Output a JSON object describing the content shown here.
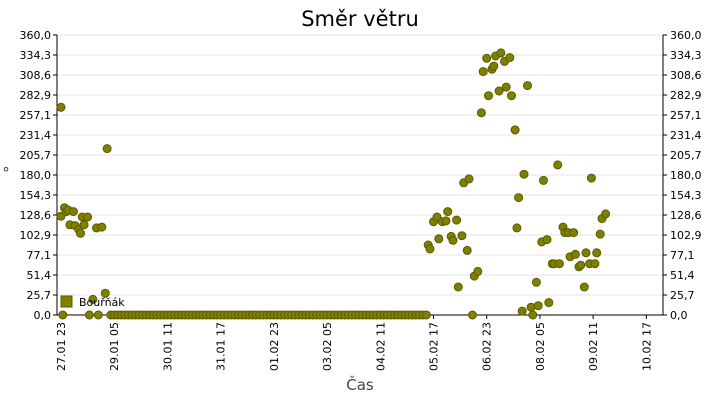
{
  "chart_data": {
    "type": "scatter",
    "title": "Směr větru",
    "xlabel": "Čas",
    "ylabel": "°",
    "ylim": [
      0,
      360
    ],
    "y_ticks": [
      "0,0",
      "25,7",
      "51,4",
      "77,1",
      "102,9",
      "128,6",
      "154,3",
      "180,0",
      "205,7",
      "231,4",
      "257,1",
      "282,9",
      "308,6",
      "334,3",
      "360,0"
    ],
    "x_range": [
      "27.01 23",
      "10.02 23"
    ],
    "x_ticks": [
      "27.01 23",
      "29.01 05",
      "30.01 11",
      "31.01 17",
      "01.02 23",
      "03.02 05",
      "04.02 11",
      "05.02 17",
      "06.02 23",
      "08.02 05",
      "09.02 11",
      "10.02 17"
    ],
    "grid": true,
    "legend_position": "bottom-left",
    "colors": {
      "marker": "#808000",
      "marker_edge": "#5a5a00",
      "grid": "#e6e6e6"
    },
    "series": [
      {
        "name": "Bouřňák",
        "points": [
          [
            "27.01 23",
            127
          ],
          [
            "27.01 23",
            267
          ],
          [
            "28.01 00",
            0
          ],
          [
            "28.01 01",
            138
          ],
          [
            "28.01 02",
            133
          ],
          [
            "28.01 03",
            135
          ],
          [
            "28.01 04",
            116
          ],
          [
            "28.01 06",
            133
          ],
          [
            "28.01 07",
            115
          ],
          [
            "28.01 09",
            110
          ],
          [
            "28.01 10",
            105
          ],
          [
            "28.01 11",
            126
          ],
          [
            "28.01 12",
            116
          ],
          [
            "28.01 14",
            126
          ],
          [
            "28.01 15",
            0
          ],
          [
            "28.01 17",
            20
          ],
          [
            "28.01 19",
            112
          ],
          [
            "28.01 20",
            0
          ],
          [
            "28.01 22",
            113
          ],
          [
            "29.01 00",
            28
          ],
          [
            "29.01 01",
            214
          ],
          [
            "29.01 03",
            0
          ],
          [
            "29.01 05",
            0
          ],
          [
            "29.01 07",
            0
          ],
          [
            "29.01 09",
            0
          ],
          [
            "29.01 11",
            0
          ],
          [
            "29.01 13",
            0
          ],
          [
            "29.01 15",
            0
          ],
          [
            "29.01 17",
            0
          ],
          [
            "29.01 19",
            0
          ],
          [
            "29.01 21",
            0
          ],
          [
            "29.01 23",
            0
          ],
          [
            "30.01 01",
            0
          ],
          [
            "30.01 03",
            0
          ],
          [
            "30.01 05",
            0
          ],
          [
            "30.01 07",
            0
          ],
          [
            "30.01 09",
            0
          ],
          [
            "30.01 11",
            0
          ],
          [
            "30.01 13",
            0
          ],
          [
            "30.01 15",
            0
          ],
          [
            "30.01 17",
            0
          ],
          [
            "30.01 19",
            0
          ],
          [
            "30.01 21",
            0
          ],
          [
            "30.01 23",
            0
          ],
          [
            "31.01 01",
            0
          ],
          [
            "31.01 03",
            0
          ],
          [
            "31.01 05",
            0
          ],
          [
            "31.01 07",
            0
          ],
          [
            "31.01 09",
            0
          ],
          [
            "31.01 11",
            0
          ],
          [
            "31.01 13",
            0
          ],
          [
            "31.01 15",
            0
          ],
          [
            "31.01 17",
            0
          ],
          [
            "31.01 19",
            0
          ],
          [
            "31.01 21",
            0
          ],
          [
            "31.01 23",
            0
          ],
          [
            "01.02 01",
            0
          ],
          [
            "01.02 03",
            0
          ],
          [
            "01.02 05",
            0
          ],
          [
            "01.02 07",
            0
          ],
          [
            "01.02 09",
            0
          ],
          [
            "01.02 11",
            0
          ],
          [
            "01.02 13",
            0
          ],
          [
            "01.02 15",
            0
          ],
          [
            "01.02 17",
            0
          ],
          [
            "01.02 19",
            0
          ],
          [
            "01.02 21",
            0
          ],
          [
            "01.02 23",
            0
          ],
          [
            "02.02 01",
            0
          ],
          [
            "02.02 03",
            0
          ],
          [
            "02.02 05",
            0
          ],
          [
            "02.02 07",
            0
          ],
          [
            "02.02 09",
            0
          ],
          [
            "02.02 11",
            0
          ],
          [
            "02.02 13",
            0
          ],
          [
            "02.02 15",
            0
          ],
          [
            "02.02 17",
            0
          ],
          [
            "02.02 19",
            0
          ],
          [
            "02.02 21",
            0
          ],
          [
            "02.02 23",
            0
          ],
          [
            "03.02 01",
            0
          ],
          [
            "03.02 03",
            0
          ],
          [
            "03.02 05",
            0
          ],
          [
            "03.02 07",
            0
          ],
          [
            "03.02 09",
            0
          ],
          [
            "03.02 11",
            0
          ],
          [
            "03.02 13",
            0
          ],
          [
            "03.02 15",
            0
          ],
          [
            "03.02 17",
            0
          ],
          [
            "03.02 19",
            0
          ],
          [
            "03.02 21",
            0
          ],
          [
            "03.02 23",
            0
          ],
          [
            "04.02 01",
            0
          ],
          [
            "04.02 03",
            0
          ],
          [
            "04.02 05",
            0
          ],
          [
            "04.02 07",
            0
          ],
          [
            "04.02 09",
            0
          ],
          [
            "04.02 11",
            0
          ],
          [
            "04.02 13",
            0
          ],
          [
            "04.02 15",
            0
          ],
          [
            "04.02 17",
            0
          ],
          [
            "04.02 19",
            0
          ],
          [
            "04.02 21",
            0
          ],
          [
            "04.02 23",
            0
          ],
          [
            "05.02 01",
            0
          ],
          [
            "05.02 03",
            0
          ],
          [
            "05.02 05",
            0
          ],
          [
            "05.02 07",
            0
          ],
          [
            "05.02 09",
            0
          ],
          [
            "05.02 11",
            0
          ],
          [
            "05.02 13",
            0
          ],
          [
            "05.02 14",
            90
          ],
          [
            "05.02 15",
            85
          ],
          [
            "05.02 17",
            120
          ],
          [
            "05.02 19",
            126
          ],
          [
            "05.02 20",
            98
          ],
          [
            "05.02 22",
            120
          ],
          [
            "06.02 00",
            121
          ],
          [
            "06.02 01",
            133
          ],
          [
            "06.02 03",
            101
          ],
          [
            "06.02 04",
            96
          ],
          [
            "06.02 06",
            122
          ],
          [
            "06.02 07",
            36
          ],
          [
            "06.02 09",
            102
          ],
          [
            "06.02 10",
            170
          ],
          [
            "06.02 12",
            83
          ],
          [
            "06.02 13",
            175
          ],
          [
            "06.02 15",
            0
          ],
          [
            "06.02 16",
            50
          ],
          [
            "06.02 18",
            56
          ],
          [
            "06.02 20",
            260
          ],
          [
            "06.02 21",
            313
          ],
          [
            "06.02 23",
            330
          ],
          [
            "07.02 00",
            282
          ],
          [
            "07.02 02",
            316
          ],
          [
            "07.02 03",
            320
          ],
          [
            "07.02 04",
            333
          ],
          [
            "07.02 06",
            288
          ],
          [
            "07.02 07",
            337
          ],
          [
            "07.02 09",
            326
          ],
          [
            "07.02 10",
            293
          ],
          [
            "07.02 12",
            331
          ],
          [
            "07.02 13",
            282
          ],
          [
            "07.02 15",
            238
          ],
          [
            "07.02 16",
            112
          ],
          [
            "07.02 17",
            151
          ],
          [
            "07.02 19",
            5
          ],
          [
            "07.02 20",
            181
          ],
          [
            "07.02 22",
            295
          ],
          [
            "08.02 00",
            10
          ],
          [
            "08.02 01",
            0
          ],
          [
            "08.02 03",
            42
          ],
          [
            "08.02 04",
            12
          ],
          [
            "08.02 06",
            94
          ],
          [
            "08.02 07",
            173
          ],
          [
            "08.02 09",
            97
          ],
          [
            "08.02 10",
            16
          ],
          [
            "08.02 12",
            66
          ],
          [
            "08.02 13",
            66
          ],
          [
            "08.02 15",
            193
          ],
          [
            "08.02 16",
            66
          ],
          [
            "08.02 18",
            113
          ],
          [
            "08.02 19",
            106
          ],
          [
            "08.02 21",
            106
          ],
          [
            "08.02 22",
            75
          ],
          [
            "09.02 00",
            106
          ],
          [
            "09.02 01",
            78
          ],
          [
            "09.02 03",
            62
          ],
          [
            "09.02 04",
            64
          ],
          [
            "09.02 06",
            36
          ],
          [
            "09.02 07",
            80
          ],
          [
            "09.02 09",
            66
          ],
          [
            "09.02 10",
            176
          ],
          [
            "09.02 12",
            66
          ],
          [
            "09.02 13",
            80
          ],
          [
            "09.02 15",
            104
          ],
          [
            "09.02 16",
            124
          ],
          [
            "09.02 18",
            130
          ]
        ]
      }
    ]
  }
}
